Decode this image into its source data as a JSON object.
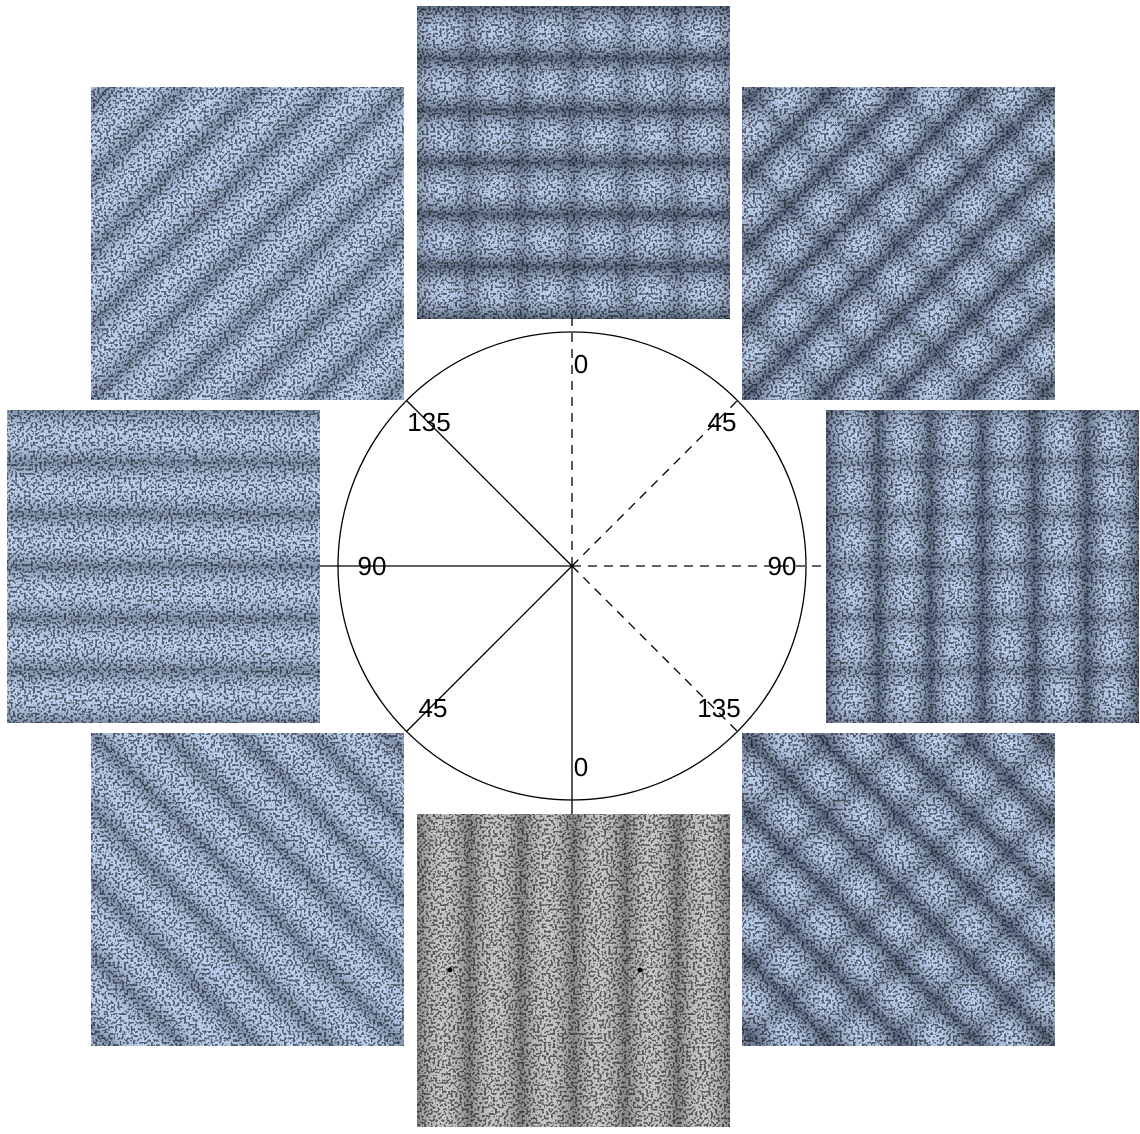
{
  "diagram": {
    "labels": [
      "0",
      "45",
      "90",
      "135",
      "0",
      "45",
      "90",
      "135"
    ]
  }
}
